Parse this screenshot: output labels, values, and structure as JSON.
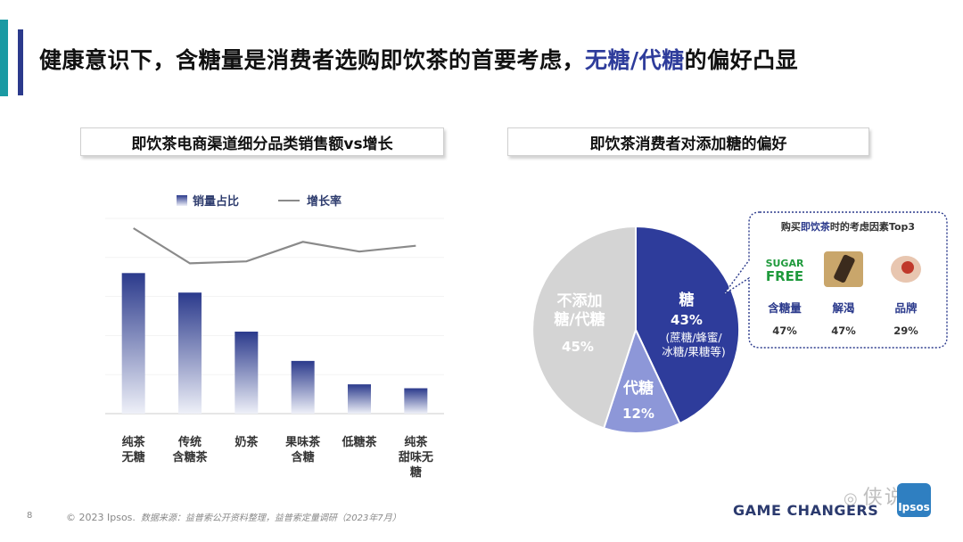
{
  "headline": {
    "part1": "健康意识下，含糖量是消费者选购即饮茶的首要考虑，",
    "highlight": "无糖/代糖",
    "part2": "的偏好凸显"
  },
  "left_title": "即饮茶电商渠道细分品类销售额vs增长",
  "right_title": "即饮茶消费者对添加糖的偏好",
  "colors": {
    "accent_teal": "#1a9aa3",
    "accent_navy": "#2b3a8c",
    "bar_gradient_top": "#2b3a8c",
    "bar_gradient_bottom": "#eef0f8",
    "line": "#8a8a8a",
    "pie_sugar": "#2e3c9b",
    "pie_substitute": "#8d97d8",
    "pie_none": "#d4d4d4",
    "callout_border": "#2b3a8c"
  },
  "chart_data": [
    {
      "type": "bar",
      "legend": [
        "销量占比",
        "增长率"
      ],
      "categories": [
        [
          "纯茶",
          "无糖"
        ],
        [
          "传统",
          "含糖茶"
        ],
        [
          "奶茶"
        ],
        [
          "果味茶",
          "含糖"
        ],
        [
          "低糖茶"
        ],
        [
          "纯茶",
          "甜味无",
          "糖"
        ]
      ],
      "series": [
        {
          "name": "销量占比",
          "kind": "bar",
          "values": [
            7.2,
            6.2,
            4.2,
            2.7,
            1.5,
            1.3
          ]
        },
        {
          "name": "增长率",
          "kind": "line",
          "values": [
            9.5,
            7.7,
            7.8,
            8.8,
            8.3,
            8.6
          ]
        }
      ],
      "ylim": [
        0,
        10
      ]
    },
    {
      "type": "pie",
      "slices": [
        {
          "label": "糖",
          "value": 43,
          "pct": "43%",
          "sub": [
            "(蔗糖/蜂蜜/",
            "冰糖/果糖等)"
          ]
        },
        {
          "label": "代糖",
          "value": 12,
          "pct": "12%"
        },
        {
          "label_lines": [
            "不添加",
            "糖/代糖"
          ],
          "value": 45,
          "pct": "45%"
        }
      ],
      "callout": {
        "title_pre": "购买",
        "title_hl": "即饮茶",
        "title_post": "时的考虑因素Top3",
        "items": [
          {
            "icon": "sugar-free-icon",
            "icon_text": [
              "SUGAR",
              "FREE"
            ],
            "label": "含糖量",
            "value": "47%"
          },
          {
            "icon": "drink-bottle-icon",
            "label": "解渴",
            "value": "47%"
          },
          {
            "icon": "brand-icon",
            "label": "品牌",
            "value": "29%"
          }
        ]
      }
    }
  ],
  "footer": {
    "page": "8",
    "copyright": "© 2023 Ipsos.",
    "source": "数据来源：益普索公开资料整理，益普索定量调研（2023年7月）",
    "logo": "GAME CHANGERS",
    "badge": "Ipsos",
    "watermark": "侠说"
  }
}
